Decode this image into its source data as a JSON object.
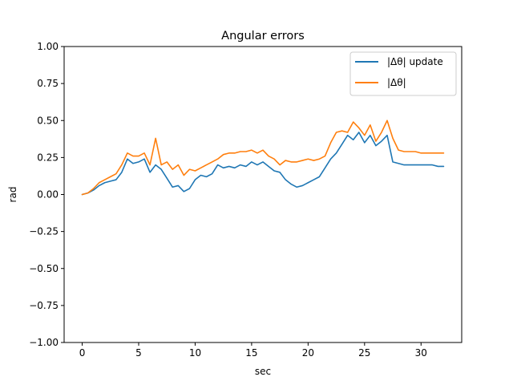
{
  "chart_data": {
    "type": "line",
    "title": "Angular errors",
    "xlabel": "sec",
    "ylabel": "rad",
    "xlim": [
      -1.6,
      33.6
    ],
    "ylim": [
      -1.0,
      1.0
    ],
    "xticks": [
      0,
      5,
      10,
      15,
      20,
      25,
      30
    ],
    "xtick_labels": [
      "0",
      "5",
      "10",
      "15",
      "20",
      "25",
      "30"
    ],
    "yticks": [
      -1.0,
      -0.75,
      -0.5,
      -0.25,
      0.0,
      0.25,
      0.5,
      0.75,
      1.0
    ],
    "ytick_labels": [
      "−1.00",
      "−0.75",
      "−0.50",
      "−0.25",
      "0.00",
      "0.25",
      "0.50",
      "0.75",
      "1.00"
    ],
    "grid": false,
    "legend_position": "top-right",
    "series": [
      {
        "name": "|Δθ| update",
        "color": "#1f77b4",
        "x": [
          0,
          0.5,
          1.0,
          1.5,
          2.0,
          2.5,
          3.0,
          3.5,
          4.0,
          4.5,
          5.0,
          5.5,
          6.0,
          6.5,
          7.0,
          7.5,
          8.0,
          8.5,
          9.0,
          9.5,
          10.0,
          10.5,
          11.0,
          11.5,
          12.0,
          12.5,
          13.0,
          13.5,
          14.0,
          14.5,
          15.0,
          15.5,
          16.0,
          16.5,
          17.0,
          17.5,
          18.0,
          18.5,
          19.0,
          19.5,
          20.0,
          20.5,
          21.0,
          21.5,
          22.0,
          22.5,
          23.0,
          23.5,
          24.0,
          24.5,
          25.0,
          25.5,
          26.0,
          26.5,
          27.0,
          27.5,
          28.0,
          28.5,
          29.0,
          29.5,
          30.0,
          30.5,
          31.0,
          31.5,
          32.0
        ],
        "values": [
          0.0,
          0.01,
          0.03,
          0.06,
          0.08,
          0.09,
          0.1,
          0.15,
          0.24,
          0.21,
          0.22,
          0.24,
          0.15,
          0.2,
          0.17,
          0.11,
          0.05,
          0.06,
          0.02,
          0.04,
          0.1,
          0.13,
          0.12,
          0.14,
          0.2,
          0.18,
          0.19,
          0.18,
          0.2,
          0.19,
          0.22,
          0.2,
          0.22,
          0.19,
          0.16,
          0.15,
          0.1,
          0.07,
          0.05,
          0.06,
          0.08,
          0.1,
          0.12,
          0.18,
          0.24,
          0.28,
          0.34,
          0.4,
          0.37,
          0.42,
          0.35,
          0.4,
          0.33,
          0.36,
          0.4,
          0.22,
          0.21,
          0.2,
          0.2,
          0.2,
          0.2,
          0.2,
          0.2,
          0.19,
          0.19
        ]
      },
      {
        "name": "|Δθ|",
        "color": "#ff7f0e",
        "x": [
          0,
          0.5,
          1.0,
          1.5,
          2.0,
          2.5,
          3.0,
          3.5,
          4.0,
          4.5,
          5.0,
          5.5,
          6.0,
          6.5,
          7.0,
          7.5,
          8.0,
          8.5,
          9.0,
          9.5,
          10.0,
          10.5,
          11.0,
          11.5,
          12.0,
          12.5,
          13.0,
          13.5,
          14.0,
          14.5,
          15.0,
          15.5,
          16.0,
          16.5,
          17.0,
          17.5,
          18.0,
          18.5,
          19.0,
          19.5,
          20.0,
          20.5,
          21.0,
          21.5,
          22.0,
          22.5,
          23.0,
          23.5,
          24.0,
          24.5,
          25.0,
          25.5,
          26.0,
          26.5,
          27.0,
          27.5,
          28.0,
          28.5,
          29.0,
          29.5,
          30.0,
          30.5,
          31.0,
          31.5,
          32.0
        ],
        "values": [
          0.0,
          0.01,
          0.04,
          0.08,
          0.1,
          0.12,
          0.14,
          0.2,
          0.28,
          0.26,
          0.26,
          0.28,
          0.2,
          0.38,
          0.2,
          0.22,
          0.17,
          0.2,
          0.13,
          0.17,
          0.16,
          0.18,
          0.2,
          0.22,
          0.24,
          0.27,
          0.28,
          0.28,
          0.29,
          0.29,
          0.3,
          0.28,
          0.3,
          0.26,
          0.24,
          0.2,
          0.23,
          0.22,
          0.22,
          0.23,
          0.24,
          0.23,
          0.24,
          0.26,
          0.35,
          0.42,
          0.43,
          0.42,
          0.49,
          0.45,
          0.4,
          0.47,
          0.36,
          0.42,
          0.5,
          0.38,
          0.3,
          0.29,
          0.29,
          0.29,
          0.28,
          0.28,
          0.28,
          0.28,
          0.28
        ]
      }
    ]
  }
}
